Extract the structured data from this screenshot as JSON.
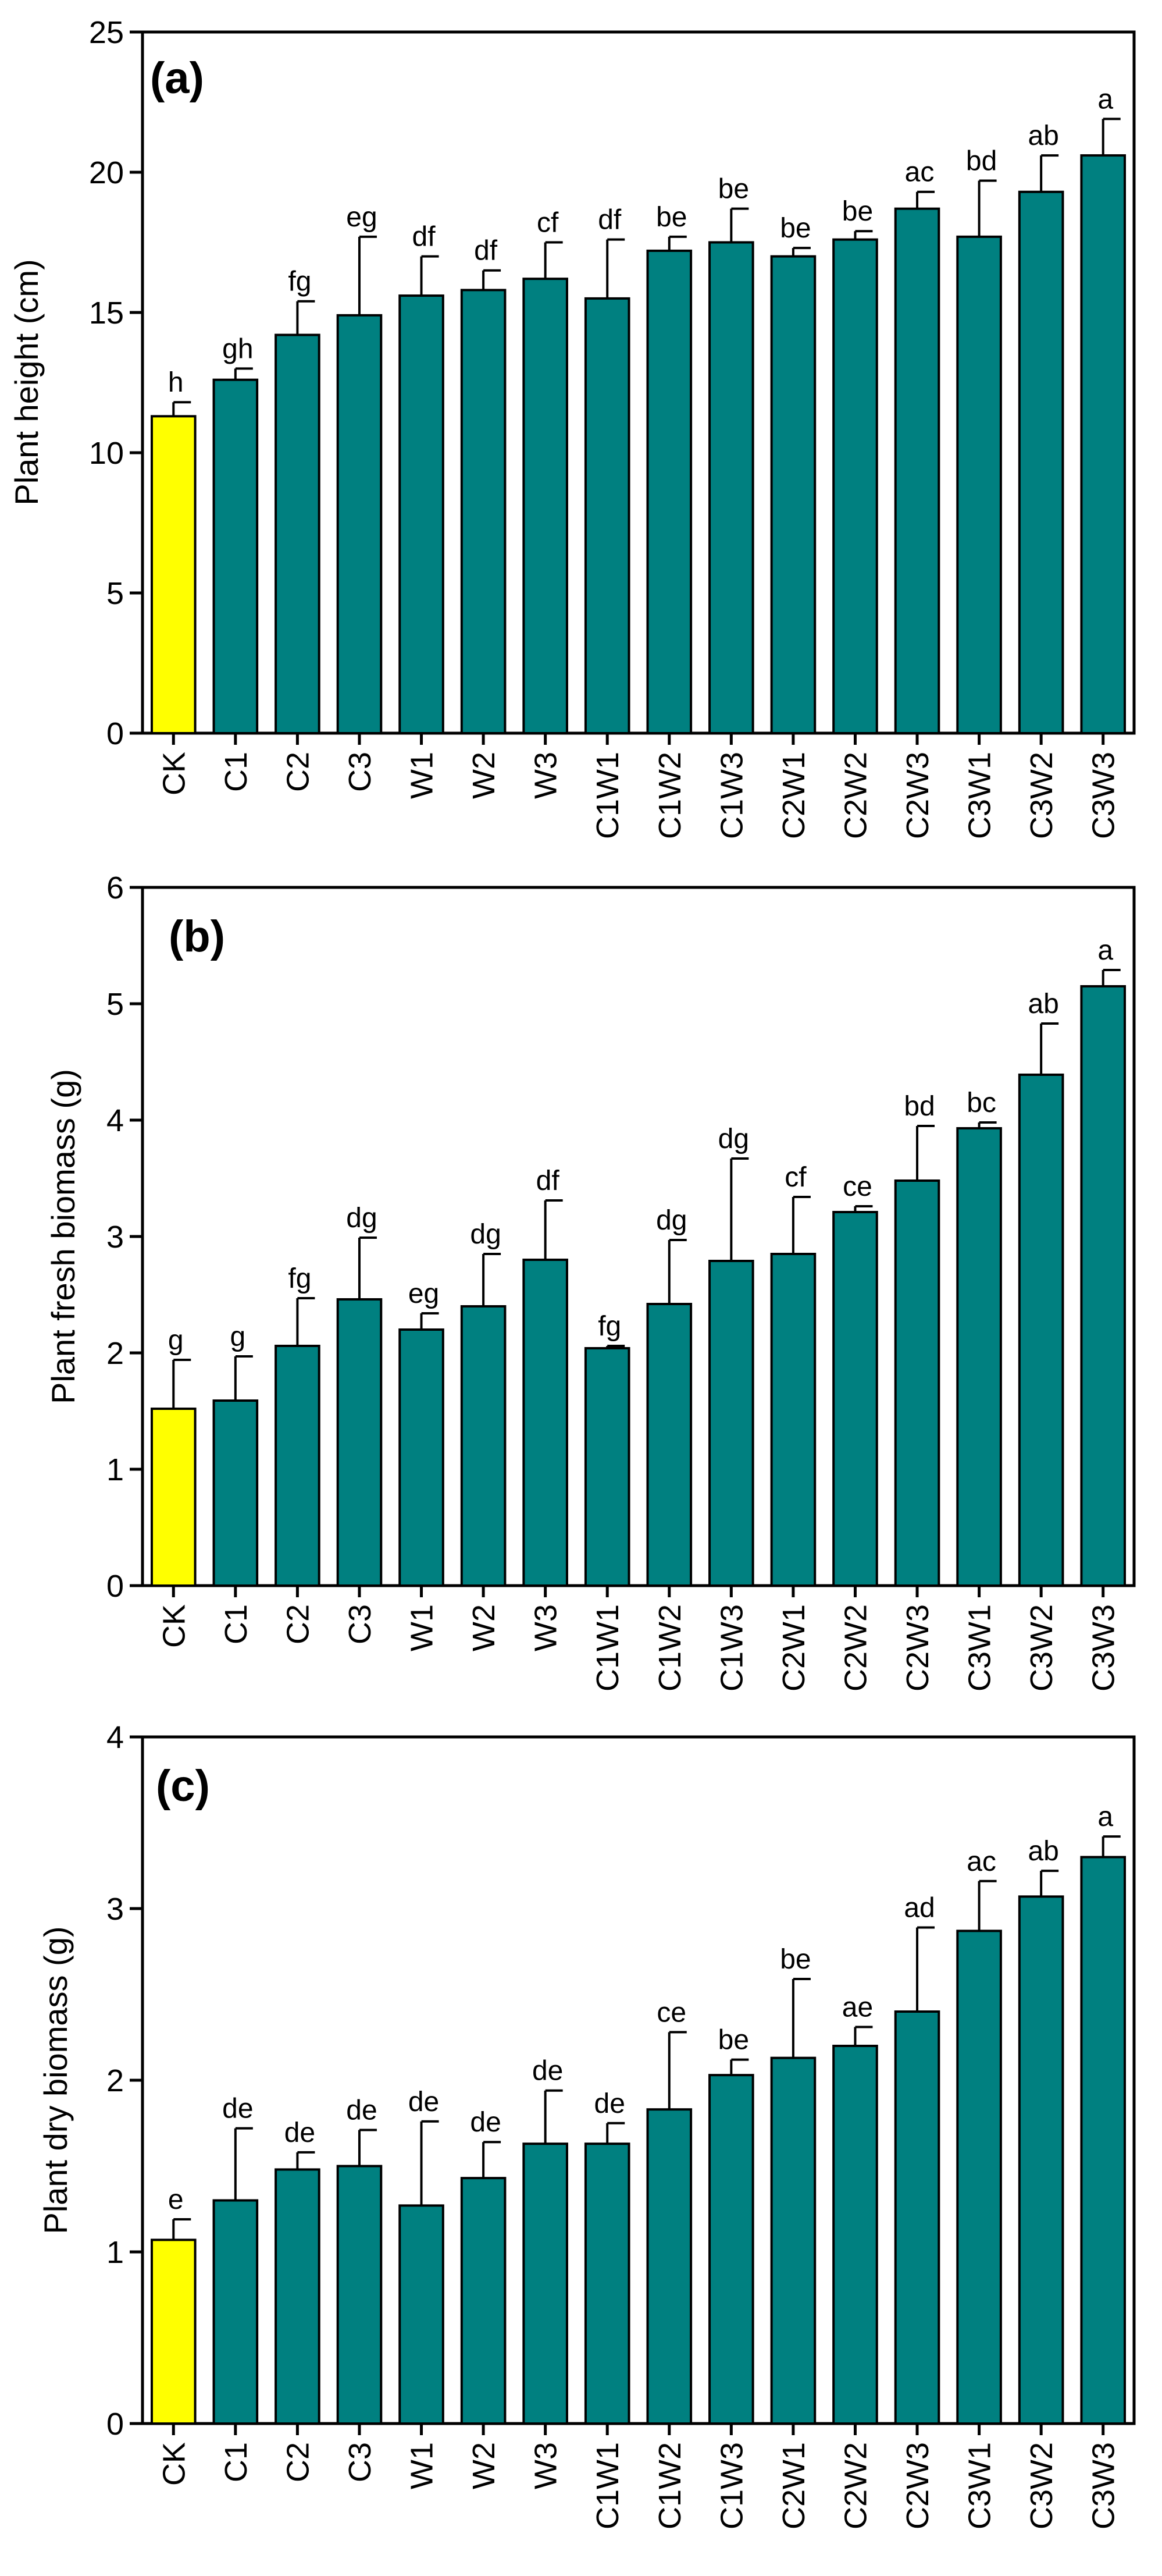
{
  "chart_data": [
    {
      "type": "bar",
      "panel_label": "(a)",
      "ylabel": "Plant height (cm)",
      "ylim": [
        0,
        25
      ],
      "yticks": [
        0,
        5,
        10,
        15,
        20,
        25
      ],
      "grid": false,
      "categories": [
        "CK",
        "C1",
        "C2",
        "C3",
        "W1",
        "W2",
        "W3",
        "C1W1",
        "C1W2",
        "C1W3",
        "C2W1",
        "C2W2",
        "C2W3",
        "C3W1",
        "C3W2",
        "C3W3"
      ],
      "values": [
        11.3,
        12.6,
        14.2,
        14.9,
        15.6,
        15.8,
        16.2,
        15.5,
        17.2,
        17.5,
        17.0,
        17.6,
        18.7,
        17.7,
        19.3,
        20.6
      ],
      "errors": [
        0.5,
        0.4,
        1.2,
        2.8,
        1.4,
        0.7,
        1.3,
        2.1,
        0.5,
        1.2,
        0.3,
        0.3,
        0.6,
        2.0,
        1.3,
        1.3
      ],
      "significance": [
        "h",
        "gh",
        "fg",
        "eg",
        "df",
        "df",
        "cf",
        "df",
        "be",
        "be",
        "be",
        "be",
        "ac",
        "bd",
        "ab",
        "a"
      ],
      "colors": {
        "CK": "#FFFF00",
        "treatment": "#008080"
      }
    },
    {
      "type": "bar",
      "panel_label": "(b)",
      "ylabel": "Plant fresh biomass (g)",
      "ylim": [
        0,
        6
      ],
      "yticks": [
        0,
        1,
        2,
        3,
        4,
        5,
        6
      ],
      "grid": false,
      "categories": [
        "CK",
        "C1",
        "C2",
        "C3",
        "W1",
        "W2",
        "W3",
        "C1W1",
        "C1W2",
        "C1W3",
        "C2W1",
        "C2W2",
        "C2W3",
        "C3W1",
        "C3W2",
        "C3W3"
      ],
      "values": [
        1.52,
        1.59,
        2.06,
        2.46,
        2.2,
        2.4,
        2.8,
        2.04,
        2.42,
        2.79,
        2.85,
        3.21,
        3.48,
        3.93,
        4.39,
        5.15
      ],
      "errors": [
        0.42,
        0.38,
        0.41,
        0.53,
        0.14,
        0.45,
        0.51,
        0.02,
        0.55,
        0.88,
        0.49,
        0.05,
        0.47,
        0.05,
        0.44,
        0.14
      ],
      "significance": [
        "g",
        "g",
        "fg",
        "dg",
        "eg",
        "dg",
        "df",
        "fg",
        "dg",
        "dg",
        "cf",
        "ce",
        "bd",
        "bc",
        "ab",
        "a"
      ],
      "colors": {
        "CK": "#FFFF00",
        "treatment": "#008080"
      }
    },
    {
      "type": "bar",
      "panel_label": "(c)",
      "ylabel": "Plant dry biomass (g)",
      "ylim": [
        0,
        4
      ],
      "yticks": [
        0,
        1,
        2,
        3,
        4
      ],
      "grid": false,
      "categories": [
        "CK",
        "C1",
        "C2",
        "C3",
        "W1",
        "W2",
        "W3",
        "C1W1",
        "C1W2",
        "C1W3",
        "C2W1",
        "C2W2",
        "C2W3",
        "C3W1",
        "C3W2",
        "C3W3"
      ],
      "values": [
        1.07,
        1.3,
        1.48,
        1.5,
        1.27,
        1.43,
        1.63,
        1.63,
        1.83,
        2.03,
        2.13,
        2.2,
        2.4,
        2.87,
        3.07,
        3.3
      ],
      "errors": [
        0.12,
        0.42,
        0.1,
        0.21,
        0.49,
        0.21,
        0.31,
        0.12,
        0.45,
        0.09,
        0.46,
        0.11,
        0.49,
        0.29,
        0.15,
        0.12
      ],
      "significance": [
        "e",
        "de",
        "de",
        "de",
        "de",
        "de",
        "de",
        "de",
        "ce",
        "be",
        "be",
        "ae",
        "ad",
        "ac",
        "ab",
        "a"
      ],
      "colors": {
        "CK": "#FFFF00",
        "treatment": "#008080"
      }
    }
  ]
}
